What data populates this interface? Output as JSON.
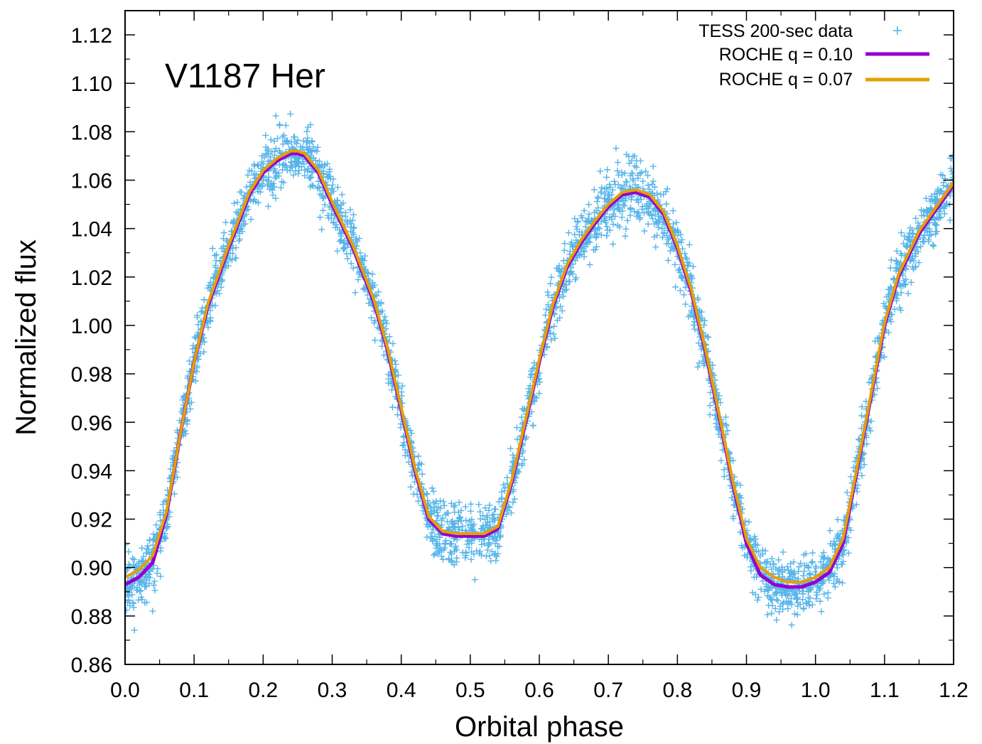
{
  "chart_data": {
    "type": "scatter",
    "title": "",
    "annotation": "V1187 Her",
    "xlabel": "Orbital phase",
    "ylabel": "Normalized flux",
    "xlim": [
      0.0,
      1.2
    ],
    "ylim": [
      0.86,
      1.13
    ],
    "x_ticks": [
      "0.0",
      "0.1",
      "0.2",
      "0.3",
      "0.4",
      "0.5",
      "0.6",
      "0.7",
      "0.8",
      "0.9",
      "1.0",
      "1.1",
      "1.2"
    ],
    "y_ticks": [
      "0.86",
      "0.88",
      "0.90",
      "0.92",
      "0.94",
      "0.96",
      "0.98",
      "1.00",
      "1.02",
      "1.04",
      "1.06",
      "1.08",
      "1.10",
      "1.12"
    ],
    "legend_position": "top-right",
    "grid": false,
    "series": [
      {
        "name": "TESS 200-sec data",
        "kind": "points",
        "marker": "plus",
        "color": "#56b4e9",
        "scatter_sigma": 0.006
      },
      {
        "name": "ROCHE q = 0.10",
        "kind": "line",
        "color": "#9400d3",
        "x": [
          0.0,
          0.02,
          0.04,
          0.06,
          0.08,
          0.1,
          0.12,
          0.15,
          0.18,
          0.2,
          0.22,
          0.24,
          0.25,
          0.26,
          0.28,
          0.3,
          0.33,
          0.36,
          0.38,
          0.4,
          0.42,
          0.44,
          0.46,
          0.48,
          0.5,
          0.52,
          0.54,
          0.56,
          0.58,
          0.6,
          0.62,
          0.64,
          0.66,
          0.68,
          0.7,
          0.72,
          0.74,
          0.76,
          0.78,
          0.8,
          0.82,
          0.84,
          0.86,
          0.88,
          0.9,
          0.92,
          0.94,
          0.96,
          0.98,
          1.0,
          1.02,
          1.04,
          1.06,
          1.08,
          1.1,
          1.12,
          1.15,
          1.18,
          1.2
        ],
        "y": [
          0.893,
          0.896,
          0.902,
          0.922,
          0.955,
          0.985,
          1.008,
          1.032,
          1.054,
          1.063,
          1.068,
          1.071,
          1.071,
          1.07,
          1.063,
          1.05,
          1.032,
          1.01,
          0.99,
          0.965,
          0.94,
          0.92,
          0.914,
          0.913,
          0.913,
          0.913,
          0.916,
          0.935,
          0.96,
          0.985,
          1.008,
          1.024,
          1.034,
          1.042,
          1.049,
          1.054,
          1.055,
          1.053,
          1.046,
          1.032,
          1.014,
          0.99,
          0.963,
          0.935,
          0.91,
          0.897,
          0.893,
          0.892,
          0.892,
          0.894,
          0.898,
          0.91,
          0.94,
          0.97,
          1.0,
          1.02,
          1.038,
          1.05,
          1.058
        ]
      },
      {
        "name": "ROCHE q = 0.07",
        "kind": "line",
        "color": "#e69f00",
        "x": [
          0.0,
          0.02,
          0.04,
          0.06,
          0.08,
          0.1,
          0.12,
          0.15,
          0.18,
          0.2,
          0.22,
          0.24,
          0.25,
          0.26,
          0.28,
          0.3,
          0.33,
          0.36,
          0.38,
          0.4,
          0.42,
          0.44,
          0.46,
          0.48,
          0.5,
          0.52,
          0.54,
          0.56,
          0.58,
          0.6,
          0.62,
          0.64,
          0.66,
          0.68,
          0.7,
          0.72,
          0.74,
          0.76,
          0.78,
          0.8,
          0.82,
          0.84,
          0.86,
          0.88,
          0.9,
          0.92,
          0.94,
          0.96,
          0.98,
          1.0,
          1.02,
          1.04,
          1.06,
          1.08,
          1.1,
          1.12,
          1.15,
          1.18,
          1.2
        ],
        "y": [
          0.896,
          0.899,
          0.905,
          0.923,
          0.955,
          0.985,
          1.009,
          1.033,
          1.055,
          1.064,
          1.069,
          1.072,
          1.072,
          1.071,
          1.064,
          1.051,
          1.033,
          1.011,
          0.991,
          0.966,
          0.941,
          0.921,
          0.915,
          0.914,
          0.914,
          0.914,
          0.917,
          0.936,
          0.961,
          0.986,
          1.009,
          1.025,
          1.035,
          1.043,
          1.05,
          1.055,
          1.056,
          1.054,
          1.047,
          1.033,
          1.015,
          0.991,
          0.964,
          0.936,
          0.912,
          0.9,
          0.896,
          0.894,
          0.894,
          0.896,
          0.9,
          0.912,
          0.941,
          0.971,
          1.001,
          1.021,
          1.039,
          1.051,
          1.059
        ]
      }
    ]
  }
}
